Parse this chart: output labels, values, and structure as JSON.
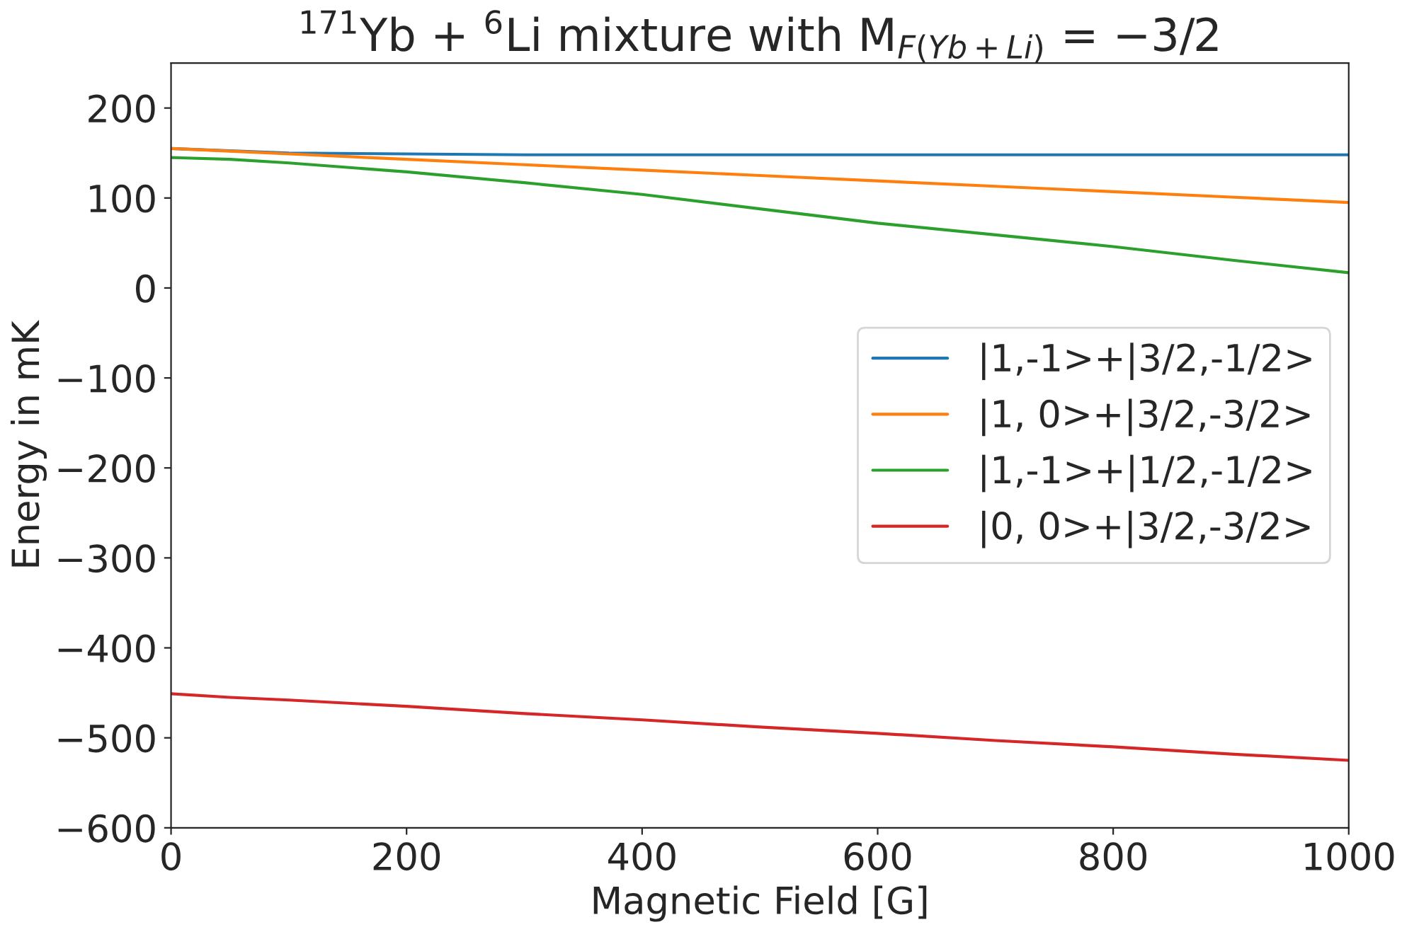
{
  "chart_data": {
    "type": "line",
    "title": "$^{171}$Yb + $^{6}$Li mixture with M$_{F(Yb+Li)}$ = −3/2",
    "xlabel": "Magnetic Field [G]",
    "ylabel": "Energy in mK",
    "x": [
      0,
      50,
      100,
      200,
      300,
      400,
      500,
      600,
      700,
      800,
      900,
      1000
    ],
    "series": [
      {
        "name": "|1,-1>+|3/2,-1/2>",
        "color": "#1f77b4",
        "values": [
          155,
          null,
          150,
          149,
          148,
          148,
          148,
          148,
          148,
          148,
          148,
          148
        ]
      },
      {
        "name": "|1, 0>+|3/2,-3/2>",
        "color": "#ff7f0e",
        "values": [
          155,
          152,
          149,
          143,
          137,
          131,
          125,
          119,
          113,
          107,
          101,
          95
        ]
      },
      {
        "name": "|1,-1>+|1/2,-1/2>",
        "color": "#2ca02c",
        "values": [
          145,
          143,
          139,
          129,
          117,
          104,
          88,
          72,
          59,
          46,
          31,
          17
        ]
      },
      {
        "name": "|0, 0>+|3/2,-3/2>",
        "color": "#d62728",
        "values": [
          -451,
          -455,
          -458,
          -465,
          -473,
          -480,
          -488,
          -495,
          -503,
          -510,
          -518,
          -525
        ]
      }
    ],
    "xlim": [
      0,
      1000
    ],
    "xticks": [
      0,
      200,
      400,
      600,
      800,
      1000
    ],
    "ylim": [
      -600,
      250
    ],
    "yticks": [
      {
        "value": -600,
        "label": "−600"
      },
      {
        "value": -500,
        "label": "−500"
      },
      {
        "value": -400,
        "label": "−400"
      },
      {
        "value": -300,
        "label": "−300"
      },
      {
        "value": -200,
        "label": "−200"
      },
      {
        "value": -100,
        "label": "−100"
      },
      0,
      100,
      200
    ],
    "legend": "center right",
    "grid": false
  }
}
